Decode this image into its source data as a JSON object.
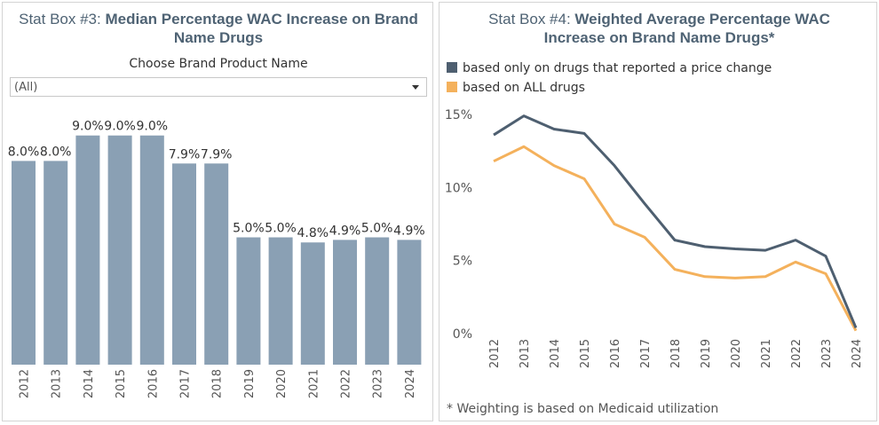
{
  "chart_data": [
    {
      "type": "bar",
      "title_prefix": "Stat Box #3:",
      "title": "Median Percentage WAC Increase on Brand Name Drugs",
      "filter_label": "Choose Brand Product Name",
      "filter_value": "(All)",
      "categories": [
        "2012",
        "2013",
        "2014",
        "2015",
        "2016",
        "2017",
        "2018",
        "2019",
        "2020",
        "2021",
        "2022",
        "2023",
        "2024"
      ],
      "values": [
        8.0,
        8.0,
        9.0,
        9.0,
        9.0,
        7.9,
        7.9,
        5.0,
        5.0,
        4.8,
        4.9,
        5.0,
        4.9
      ],
      "value_labels": [
        "8.0%",
        "8.0%",
        "9.0%",
        "9.0%",
        "9.0%",
        "7.9%",
        "7.9%",
        "5.0%",
        "5.0%",
        "4.8%",
        "4.9%",
        "5.0%",
        "4.9%"
      ],
      "color": "#8aa0b4"
    },
    {
      "type": "line",
      "title_prefix": "Stat Box #4:",
      "title": "Weighted Average Percentage WAC Increase on Brand Name Drugs*",
      "categories": [
        "2012",
        "2013",
        "2014",
        "2015",
        "2016",
        "2017",
        "2018",
        "2019",
        "2020",
        "2021",
        "2022",
        "2023",
        "2024"
      ],
      "series": [
        {
          "name": "based only on drugs that reported a price change",
          "color": "#4e5f70",
          "values": [
            13.6,
            14.9,
            14.0,
            13.7,
            11.5,
            8.9,
            6.4,
            5.95,
            5.8,
            5.7,
            6.4,
            5.3,
            0.4
          ]
        },
        {
          "name": "based on ALL drugs",
          "color": "#f4b15c",
          "values": [
            11.8,
            12.8,
            11.5,
            10.6,
            7.5,
            6.6,
            4.4,
            3.9,
            3.8,
            3.9,
            4.9,
            4.1,
            0.2
          ]
        }
      ],
      "ylim": [
        0,
        15
      ],
      "yticks": [
        {
          "value": 0,
          "label": "0%"
        },
        {
          "value": 5,
          "label": "5%"
        },
        {
          "value": 10,
          "label": "10%"
        },
        {
          "value": 15,
          "label": "15%"
        }
      ],
      "footnote": "* Weighting is based on Medicaid utilization"
    }
  ]
}
